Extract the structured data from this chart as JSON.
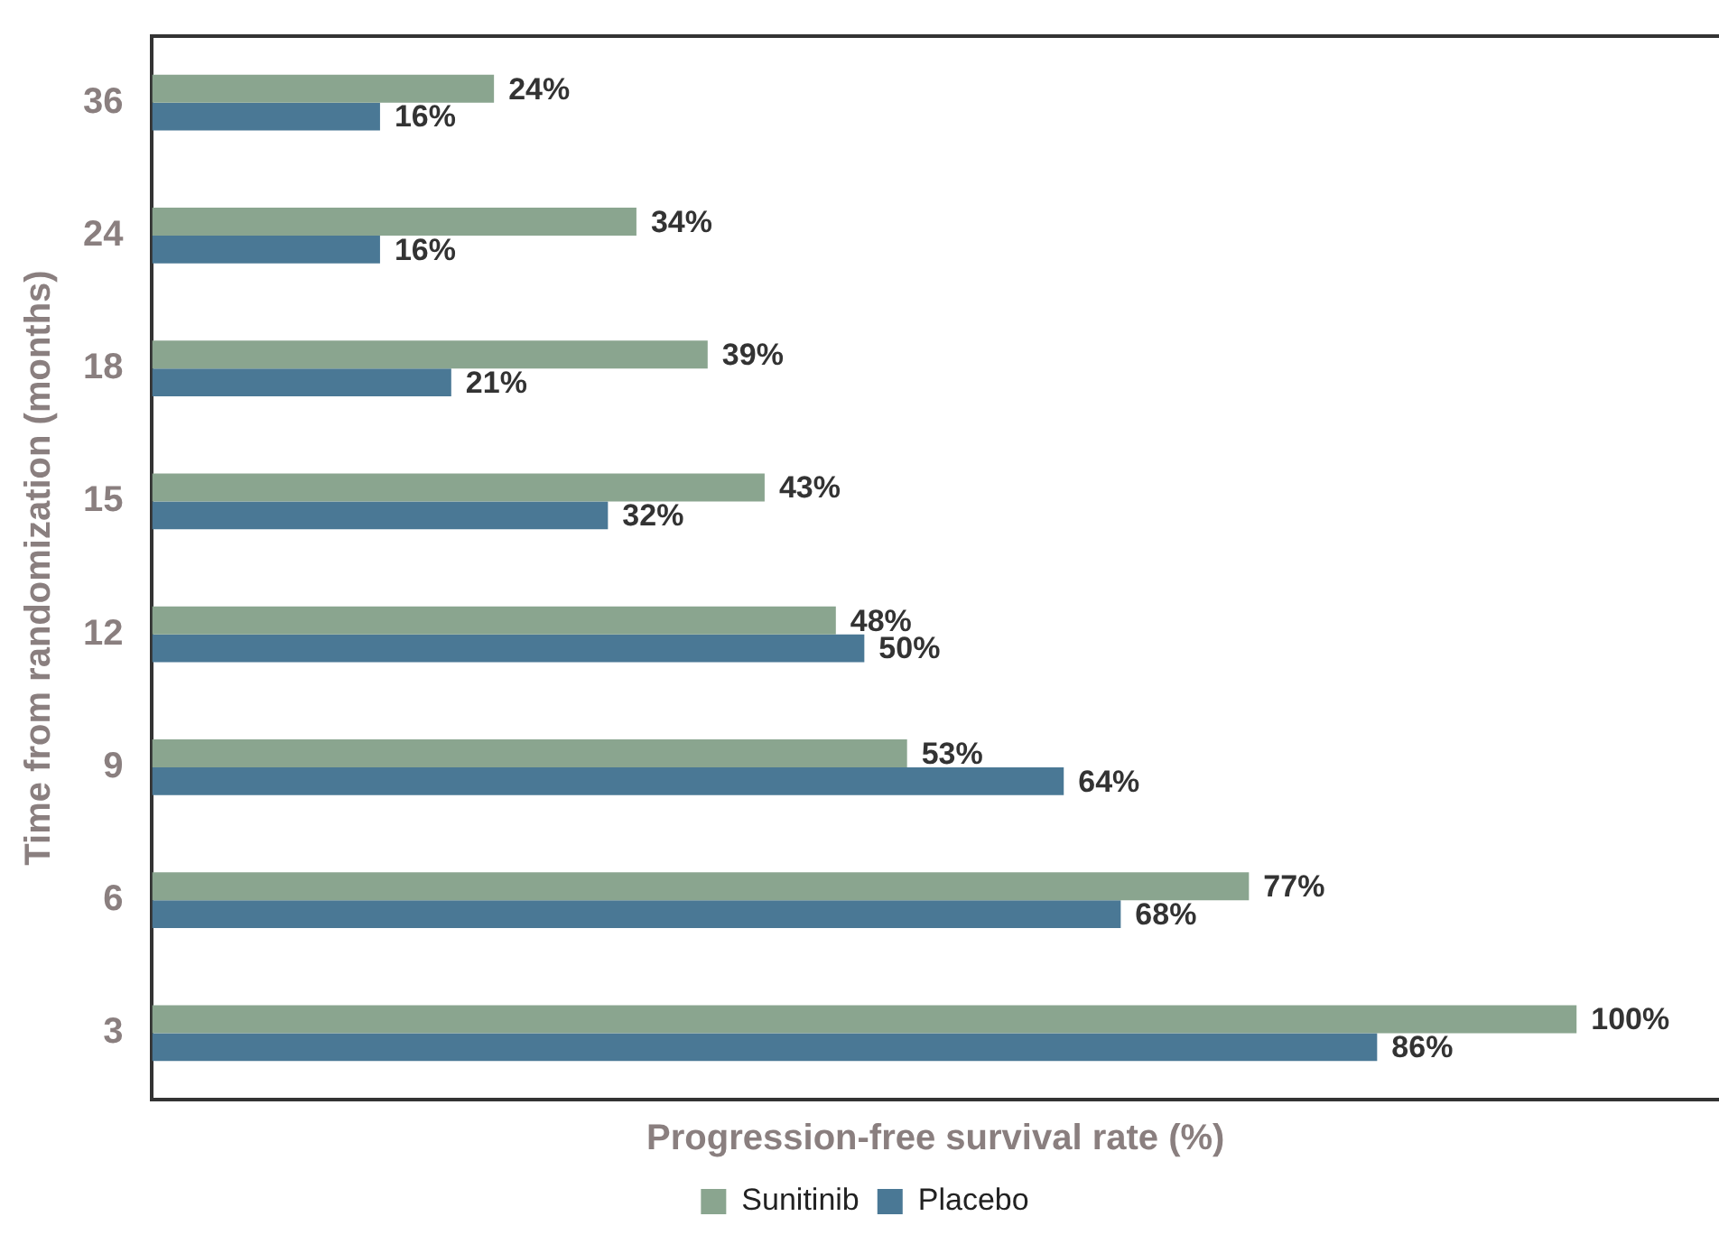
{
  "chart_data": {
    "type": "bar",
    "orientation": "horizontal",
    "xlabel": "Progression-free survival rate (%)",
    "ylabel": "Time from randomization (months)",
    "categories": [
      "36",
      "24",
      "18",
      "15",
      "12",
      "9",
      "6",
      "3"
    ],
    "series": [
      {
        "name": "Sunitinib",
        "color": "#8aa58f",
        "values": [
          24,
          34,
          39,
          43,
          48,
          53,
          77,
          100
        ],
        "value_labels": [
          "24%",
          "34%",
          "39%",
          "43%",
          "48%",
          "53%",
          "77%",
          "100%"
        ]
      },
      {
        "name": "Placebo",
        "color": "#4a7895",
        "values": [
          16,
          16,
          21,
          32,
          50,
          64,
          68,
          86
        ],
        "value_labels": [
          "16%",
          "16%",
          "21%",
          "32%",
          "50%",
          "64%",
          "68%",
          "86%"
        ]
      }
    ],
    "xlim": [
      0,
      110
    ],
    "tick_labels": "y",
    "grid": false,
    "legend": "bottom"
  }
}
